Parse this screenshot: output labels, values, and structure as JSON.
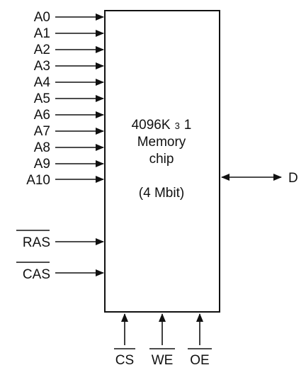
{
  "address_pins": [
    "A0",
    "A1",
    "A2",
    "A3",
    "A4",
    "A5",
    "A6",
    "A7",
    "A8",
    "A9",
    "A10"
  ],
  "strobe_pins": [
    "RAS",
    "CAS"
  ],
  "control_pins": [
    "CS",
    "WE",
    "OE"
  ],
  "data_pin": "D",
  "chip": {
    "size_prefix": "4096K",
    "times": "3",
    "width": "1",
    "line2": "Memory",
    "line3": "chip",
    "capacity": "(4 Mbit)"
  },
  "colors": {
    "ink": "#111111",
    "background": "#ffffff"
  }
}
